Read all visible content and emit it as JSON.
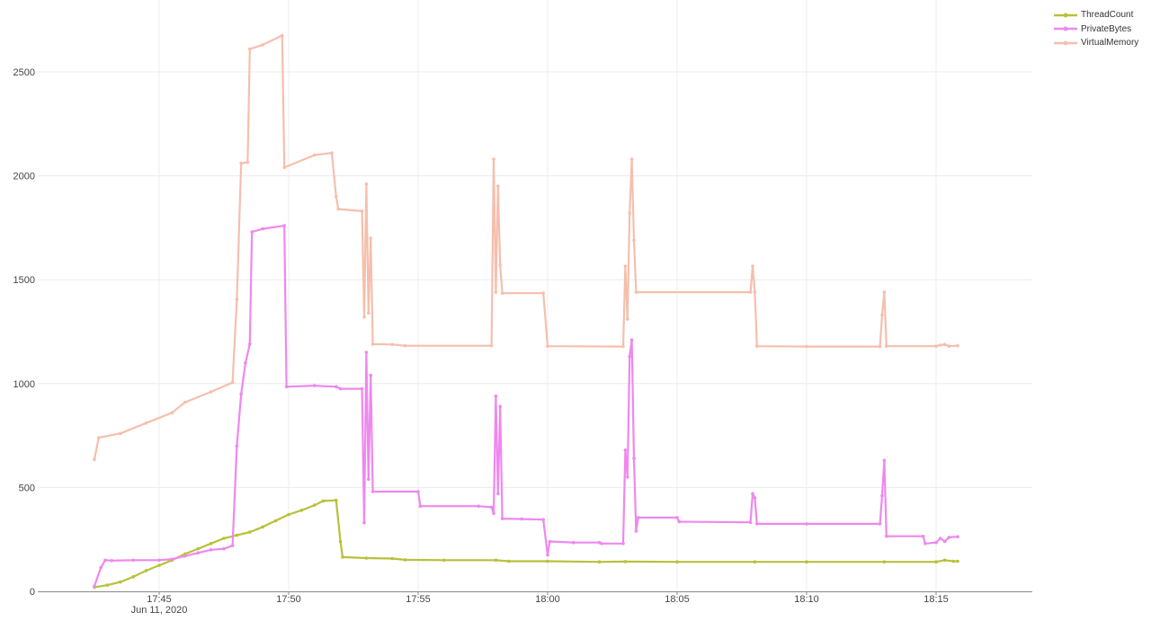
{
  "chart_data": {
    "type": "line",
    "x_ticks": [
      "17:45",
      "17:50",
      "17:55",
      "18:00",
      "18:05",
      "18:10",
      "18:15"
    ],
    "x_date_label": "Jun 11, 2020",
    "y_ticks": [
      "0",
      "500",
      "1000",
      "1500",
      "2000",
      "2500"
    ],
    "ylim": [
      0,
      2750
    ],
    "grid": true,
    "legend_position": "top-right",
    "series": [
      {
        "name": "ThreadCount",
        "color": "#b9c03a",
        "points": [
          [
            "17:42:30",
            20
          ],
          [
            "17:43:00",
            30
          ],
          [
            "17:43:30",
            45
          ],
          [
            "17:44:00",
            70
          ],
          [
            "17:44:30",
            100
          ],
          [
            "17:45:00",
            125
          ],
          [
            "17:45:30",
            150
          ],
          [
            "17:46:00",
            180
          ],
          [
            "17:46:30",
            205
          ],
          [
            "17:47:00",
            230
          ],
          [
            "17:47:30",
            255
          ],
          [
            "17:48:00",
            270
          ],
          [
            "17:48:30",
            285
          ],
          [
            "17:49:00",
            310
          ],
          [
            "17:49:30",
            340
          ],
          [
            "17:50:00",
            370
          ],
          [
            "17:50:30",
            390
          ],
          [
            "17:51:00",
            415
          ],
          [
            "17:51:20",
            435
          ],
          [
            "17:51:50",
            438
          ],
          [
            "17:52:00",
            240
          ],
          [
            "17:52:05",
            165
          ],
          [
            "17:53:00",
            160
          ],
          [
            "17:54:00",
            158
          ],
          [
            "17:54:30",
            152
          ],
          [
            "17:56:00",
            150
          ],
          [
            "17:58:00",
            150
          ],
          [
            "17:58:30",
            145
          ],
          [
            "18:00:00",
            145
          ],
          [
            "18:02:00",
            142
          ],
          [
            "18:03:00",
            143
          ],
          [
            "18:05:00",
            142
          ],
          [
            "18:08:00",
            142
          ],
          [
            "18:10:00",
            142
          ],
          [
            "18:13:00",
            142
          ],
          [
            "18:15:00",
            142
          ],
          [
            "18:15:20",
            150
          ],
          [
            "18:15:40",
            145
          ],
          [
            "18:15:50",
            145
          ]
        ]
      },
      {
        "name": "PrivateBytes",
        "color": "#ee88ee",
        "points": [
          [
            "17:42:30",
            25
          ],
          [
            "17:42:45",
            115
          ],
          [
            "17:42:55",
            150
          ],
          [
            "17:43:10",
            148
          ],
          [
            "17:44:00",
            150
          ],
          [
            "17:45:00",
            150
          ],
          [
            "17:45:30",
            155
          ],
          [
            "17:46:00",
            170
          ],
          [
            "17:46:30",
            185
          ],
          [
            "17:47:00",
            200
          ],
          [
            "17:47:30",
            205
          ],
          [
            "17:47:50",
            220
          ],
          [
            "17:48:00",
            700
          ],
          [
            "17:48:10",
            950
          ],
          [
            "17:48:20",
            1100
          ],
          [
            "17:48:30",
            1190
          ],
          [
            "17:48:35",
            1730
          ],
          [
            "17:49:00",
            1745
          ],
          [
            "17:49:50",
            1760
          ],
          [
            "17:49:55",
            985
          ],
          [
            "17:51:00",
            990
          ],
          [
            "17:51:50",
            985
          ],
          [
            "17:52:00",
            975
          ],
          [
            "17:52:50",
            975
          ],
          [
            "17:52:55",
            330
          ],
          [
            "17:53:00",
            1150
          ],
          [
            "17:53:05",
            540
          ],
          [
            "17:53:10",
            1040
          ],
          [
            "17:53:15",
            480
          ],
          [
            "17:55:00",
            480
          ],
          [
            "17:55:05",
            410
          ],
          [
            "17:57:20",
            410
          ],
          [
            "17:57:50",
            405
          ],
          [
            "17:57:55",
            375
          ],
          [
            "17:58:00",
            940
          ],
          [
            "17:58:05",
            470
          ],
          [
            "17:58:10",
            890
          ],
          [
            "17:58:15",
            350
          ],
          [
            "17:59:00",
            348
          ],
          [
            "17:59:50",
            345
          ],
          [
            "18:00:00",
            175
          ],
          [
            "18:00:05",
            240
          ],
          [
            "18:01:00",
            235
          ],
          [
            "18:02:00",
            235
          ],
          [
            "18:02:05",
            230
          ],
          [
            "18:02:55",
            230
          ],
          [
            "18:03:00",
            680
          ],
          [
            "18:03:05",
            550
          ],
          [
            "18:03:10",
            1130
          ],
          [
            "18:03:15",
            1210
          ],
          [
            "18:03:20",
            640
          ],
          [
            "18:03:25",
            290
          ],
          [
            "18:03:30",
            355
          ],
          [
            "18:05:00",
            355
          ],
          [
            "18:05:05",
            335
          ],
          [
            "18:07:50",
            332
          ],
          [
            "18:07:55",
            470
          ],
          [
            "18:08:00",
            450
          ],
          [
            "18:08:05",
            325
          ],
          [
            "18:10:00",
            325
          ],
          [
            "18:12:50",
            325
          ],
          [
            "18:12:55",
            460
          ],
          [
            "18:13:00",
            630
          ],
          [
            "18:13:05",
            265
          ],
          [
            "18:14:30",
            265
          ],
          [
            "18:14:35",
            230
          ],
          [
            "18:15:00",
            235
          ],
          [
            "18:15:10",
            255
          ],
          [
            "18:15:20",
            240
          ],
          [
            "18:15:30",
            260
          ],
          [
            "18:15:50",
            263
          ]
        ]
      },
      {
        "name": "VirtualMemory",
        "color": "#f5bfad",
        "points": [
          [
            "17:42:30",
            635
          ],
          [
            "17:42:40",
            740
          ],
          [
            "17:43:30",
            760
          ],
          [
            "17:44:30",
            810
          ],
          [
            "17:45:30",
            860
          ],
          [
            "17:46:00",
            910
          ],
          [
            "17:47:00",
            960
          ],
          [
            "17:47:50",
            1005
          ],
          [
            "17:48:00",
            1405
          ],
          [
            "17:48:10",
            2060
          ],
          [
            "17:48:25",
            2065
          ],
          [
            "17:48:30",
            2610
          ],
          [
            "17:49:00",
            2630
          ],
          [
            "17:49:45",
            2675
          ],
          [
            "17:49:50",
            2040
          ],
          [
            "17:51:00",
            2100
          ],
          [
            "17:51:40",
            2110
          ],
          [
            "17:51:50",
            1900
          ],
          [
            "17:51:55",
            1840
          ],
          [
            "17:52:50",
            1830
          ],
          [
            "17:52:55",
            1320
          ],
          [
            "17:53:00",
            1960
          ],
          [
            "17:53:05",
            1340
          ],
          [
            "17:53:10",
            1700
          ],
          [
            "17:53:15",
            1190
          ],
          [
            "17:54:00",
            1188
          ],
          [
            "17:54:30",
            1182
          ],
          [
            "17:57:50",
            1182
          ],
          [
            "17:57:55",
            2080
          ],
          [
            "17:58:00",
            1440
          ],
          [
            "17:58:05",
            1950
          ],
          [
            "17:58:10",
            1570
          ],
          [
            "17:58:15",
            1435
          ],
          [
            "17:59:50",
            1435
          ],
          [
            "18:00:00",
            1180
          ],
          [
            "18:02:55",
            1178
          ],
          [
            "18:03:00",
            1565
          ],
          [
            "18:03:05",
            1310
          ],
          [
            "18:03:10",
            1820
          ],
          [
            "18:03:15",
            2080
          ],
          [
            "18:03:20",
            1690
          ],
          [
            "18:03:25",
            1440
          ],
          [
            "18:07:50",
            1440
          ],
          [
            "18:07:55",
            1565
          ],
          [
            "18:08:00",
            1440
          ],
          [
            "18:08:05",
            1180
          ],
          [
            "18:10:00",
            1178
          ],
          [
            "18:12:50",
            1178
          ],
          [
            "18:12:55",
            1330
          ],
          [
            "18:13:00",
            1440
          ],
          [
            "18:13:05",
            1180
          ],
          [
            "18:15:00",
            1180
          ],
          [
            "18:15:10",
            1185
          ],
          [
            "18:15:20",
            1188
          ],
          [
            "18:15:30",
            1180
          ],
          [
            "18:15:50",
            1182
          ]
        ]
      }
    ]
  }
}
